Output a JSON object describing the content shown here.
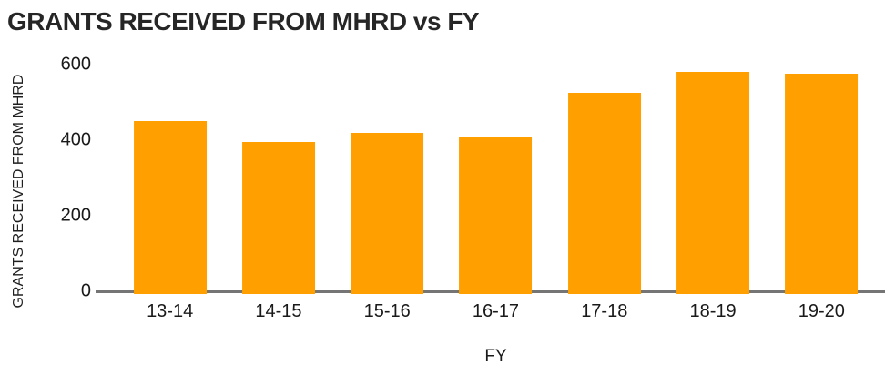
{
  "chart_data": {
    "type": "bar",
    "title": "GRANTS RECEIVED FROM MHRD vs FY",
    "categories": [
      "13-14",
      "14-15",
      "15-16",
      "16-17",
      "17-18",
      "18-19",
      "19-20"
    ],
    "values": [
      450,
      395,
      420,
      410,
      525,
      580,
      575
    ],
    "xlabel": "FY",
    "ylabel": "GRANTS RECEIVED FROM MHRD",
    "ylim": [
      0,
      600
    ],
    "yticks": [
      0,
      200,
      400,
      600
    ],
    "grid": false,
    "legend": false,
    "bar_color": "#FFA000",
    "axis_line_color": "#757575",
    "text_color": "#1f1f1f",
    "background_color": "#FFFFFF"
  }
}
